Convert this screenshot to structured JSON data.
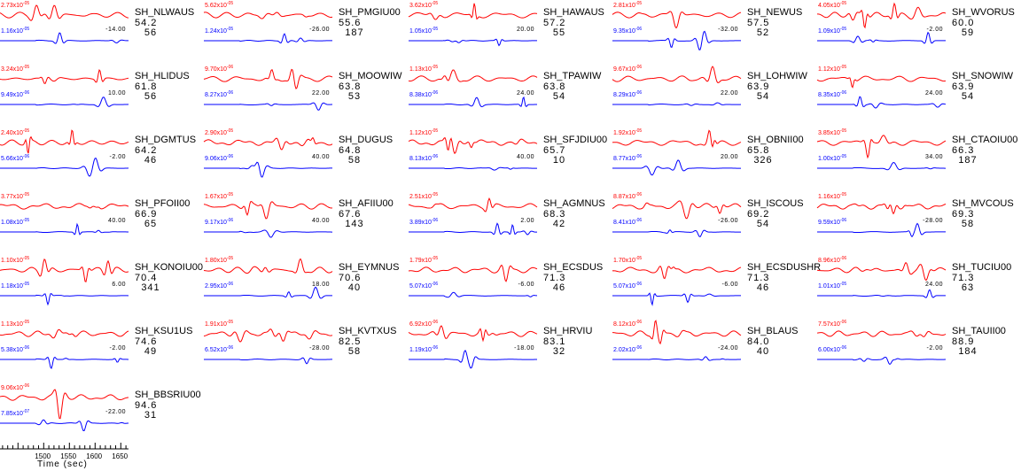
{
  "chart_data": {
    "type": "line",
    "title": "",
    "xlabel": "Time (sec)",
    "xlim": [
      1415,
      1665
    ],
    "x_ticks": [
      "1500",
      "1550",
      "1600",
      "1650"
    ],
    "colors": {
      "observed": "#ff0000",
      "synthetic": "#0000ff"
    },
    "panels": [
      {
        "station": "SH_NLWAUS",
        "distance": "54.2",
        "azimuth": "56",
        "amp_red": "2.73x10",
        "exp_red": "-05",
        "amp_blue": "1.16x10",
        "exp_blue": "-05",
        "shift": "-14.00"
      },
      {
        "station": "SH_PMGIU00",
        "distance": "55.6",
        "azimuth": "187",
        "amp_red": "5.62x10",
        "exp_red": "-05",
        "amp_blue": "1.24x10",
        "exp_blue": "-05",
        "shift": "-26.00"
      },
      {
        "station": "SH_HAWAUS",
        "distance": "57.2",
        "azimuth": "55",
        "amp_red": "3.62x10",
        "exp_red": "-05",
        "amp_blue": "1.05x10",
        "exp_blue": "-05",
        "shift": "20.00"
      },
      {
        "station": "SH_NEWUS",
        "distance": "57.5",
        "azimuth": "52",
        "amp_red": "2.81x10",
        "exp_red": "-05",
        "amp_blue": "9.35x10",
        "exp_blue": "-06",
        "shift": "-32.00"
      },
      {
        "station": "SH_WVORUS",
        "distance": "60.0",
        "azimuth": "59",
        "amp_red": "4.05x10",
        "exp_red": "-05",
        "amp_blue": "1.09x10",
        "exp_blue": "-05",
        "shift": "-2.00"
      },
      {
        "station": "SH_HLIDUS",
        "distance": "61.8",
        "azimuth": "56",
        "amp_red": "3.24x10",
        "exp_red": "-05",
        "amp_blue": "9.49x10",
        "exp_blue": "-06",
        "shift": "10.00"
      },
      {
        "station": "SH_MOOWIW",
        "distance": "63.8",
        "azimuth": "53",
        "amp_red": "9.70x10",
        "exp_red": "-06",
        "amp_blue": "8.27x10",
        "exp_blue": "-06",
        "shift": "22.00"
      },
      {
        "station": "SH_TPAWIW",
        "distance": "63.8",
        "azimuth": "54",
        "amp_red": "1.13x10",
        "exp_red": "-05",
        "amp_blue": "8.38x10",
        "exp_blue": "-06",
        "shift": "24.00"
      },
      {
        "station": "SH_LOHWIW",
        "distance": "63.9",
        "azimuth": "54",
        "amp_red": "9.67x10",
        "exp_red": "-06",
        "amp_blue": "8.29x10",
        "exp_blue": "-06",
        "shift": "22.00"
      },
      {
        "station": "SH_SNOWIW",
        "distance": "63.9",
        "azimuth": "54",
        "amp_red": "1.12x10",
        "exp_red": "-05",
        "amp_blue": "8.35x10",
        "exp_blue": "-06",
        "shift": "24.00"
      },
      {
        "station": "SH_DGMTUS",
        "distance": "64.2",
        "azimuth": "46",
        "amp_red": "2.40x10",
        "exp_red": "-05",
        "amp_blue": "5.66x10",
        "exp_blue": "-06",
        "shift": "-2.00"
      },
      {
        "station": "SH_DUGUS",
        "distance": "64.8",
        "azimuth": "58",
        "amp_red": "2.90x10",
        "exp_red": "-05",
        "amp_blue": "9.06x10",
        "exp_blue": "-06",
        "shift": "40.00"
      },
      {
        "station": "SH_SFJDIU00",
        "distance": "65.7",
        "azimuth": "10",
        "amp_red": "1.12x10",
        "exp_red": "-05",
        "amp_blue": "8.13x10",
        "exp_blue": "-06",
        "shift": "40.00"
      },
      {
        "station": "SH_OBNII00",
        "distance": "65.8",
        "azimuth": "326",
        "amp_red": "1.92x10",
        "exp_red": "-05",
        "amp_blue": "8.77x10",
        "exp_blue": "-06",
        "shift": "20.00"
      },
      {
        "station": "SH_CTAOIU00",
        "distance": "66.3",
        "azimuth": "187",
        "amp_red": "3.85x10",
        "exp_red": "-05",
        "amp_blue": "1.00x10",
        "exp_blue": "-05",
        "shift": "34.00"
      },
      {
        "station": "SH_PFOII00",
        "distance": "66.9",
        "azimuth": "65",
        "amp_red": "3.77x10",
        "exp_red": "-05",
        "amp_blue": "1.08x10",
        "exp_blue": "-05",
        "shift": "40.00"
      },
      {
        "station": "SH_AFIIU00",
        "distance": "67.6",
        "azimuth": "143",
        "amp_red": "1.67x10",
        "exp_red": "-05",
        "amp_blue": "9.17x10",
        "exp_blue": "-06",
        "shift": "40.00"
      },
      {
        "station": "SH_AGMNUS",
        "distance": "68.3",
        "azimuth": "42",
        "amp_red": "2.51x10",
        "exp_red": "-05",
        "amp_blue": "3.89x10",
        "exp_blue": "-06",
        "shift": "2.00"
      },
      {
        "station": "SH_ISCOUS",
        "distance": "69.2",
        "azimuth": "54",
        "amp_red": "8.87x10",
        "exp_red": "-06",
        "amp_blue": "8.41x10",
        "exp_blue": "-06",
        "shift": "-26.00"
      },
      {
        "station": "SH_MVCOUS",
        "distance": "69.3",
        "azimuth": "58",
        "amp_red": "1.16x10",
        "exp_red": "-05",
        "amp_blue": "9.59x10",
        "exp_blue": "-06",
        "shift": "-28.00"
      },
      {
        "station": "SH_KONOIU00",
        "distance": "70.4",
        "azimuth": "341",
        "amp_red": "1.10x10",
        "exp_red": "-05",
        "amp_blue": "1.18x10",
        "exp_blue": "-05",
        "shift": "6.00"
      },
      {
        "station": "SH_EYMNUS",
        "distance": "70.6",
        "azimuth": "40",
        "amp_red": "1.80x10",
        "exp_red": "-05",
        "amp_blue": "2.95x10",
        "exp_blue": "-06",
        "shift": "18.00"
      },
      {
        "station": "SH_ECSDUS",
        "distance": "71.3",
        "azimuth": "46",
        "amp_red": "1.79x10",
        "exp_red": "-05",
        "amp_blue": "5.07x10",
        "exp_blue": "-06",
        "shift": "-6.00"
      },
      {
        "station": "SH_ECSDUSHR",
        "distance": "71.3",
        "azimuth": "46",
        "amp_red": "1.70x10",
        "exp_red": "-05",
        "amp_blue": "5.07x10",
        "exp_blue": "-06",
        "shift": "-6.00"
      },
      {
        "station": "SH_TUCIU00",
        "distance": "71.3",
        "azimuth": "63",
        "amp_red": "8.96x10",
        "exp_red": "-06",
        "amp_blue": "1.01x10",
        "exp_blue": "-05",
        "shift": "24.00"
      },
      {
        "station": "SH_KSU1US",
        "distance": "74.6",
        "azimuth": "49",
        "amp_red": "1.13x10",
        "exp_red": "-05",
        "amp_blue": "5.38x10",
        "exp_blue": "-06",
        "shift": "-2.00"
      },
      {
        "station": "SH_KVTXUS",
        "distance": "82.5",
        "azimuth": "58",
        "amp_red": "1.91x10",
        "exp_red": "-05",
        "amp_blue": "6.52x10",
        "exp_blue": "-06",
        "shift": "-28.00"
      },
      {
        "station": "SH_HRVIU",
        "distance": "83.1",
        "azimuth": "32",
        "amp_red": "6.92x10",
        "exp_red": "-06",
        "amp_blue": "1.19x10",
        "exp_blue": "-06",
        "shift": "-18.00"
      },
      {
        "station": "SH_BLAUS",
        "distance": "84.0",
        "azimuth": "40",
        "amp_red": "8.12x10",
        "exp_red": "-06",
        "amp_blue": "2.02x10",
        "exp_blue": "-06",
        "shift": "-24.00"
      },
      {
        "station": "SH_TAUII00",
        "distance": "88.9",
        "azimuth": "184",
        "amp_red": "7.57x10",
        "exp_red": "-06",
        "amp_blue": "6.00x10",
        "exp_blue": "-06",
        "shift": "-2.00"
      },
      {
        "station": "SH_BBSRIU00",
        "distance": "94.6",
        "azimuth": "31",
        "amp_red": "9.06x10",
        "exp_red": "-06",
        "amp_blue": "7.85x10",
        "exp_blue": "-07",
        "shift": "-22.00"
      }
    ]
  }
}
